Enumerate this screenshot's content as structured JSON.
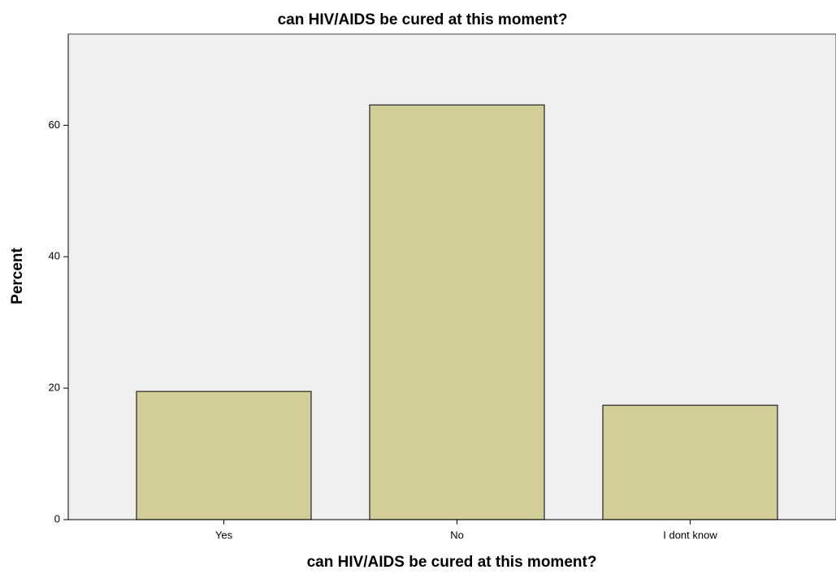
{
  "chart_data": {
    "type": "bar",
    "title": "can HIV/AIDS be cured at this moment?",
    "xlabel": "can HIV/AIDS be cured at this moment?",
    "ylabel": "Percent",
    "categories": [
      "Yes",
      "No",
      "I dont know"
    ],
    "values": [
      19.5,
      63.1,
      17.4
    ],
    "color": "#d3ce97",
    "ylim": [
      0,
      74
    ],
    "yticks": [
      0,
      20,
      40,
      60
    ],
    "grid": false
  }
}
